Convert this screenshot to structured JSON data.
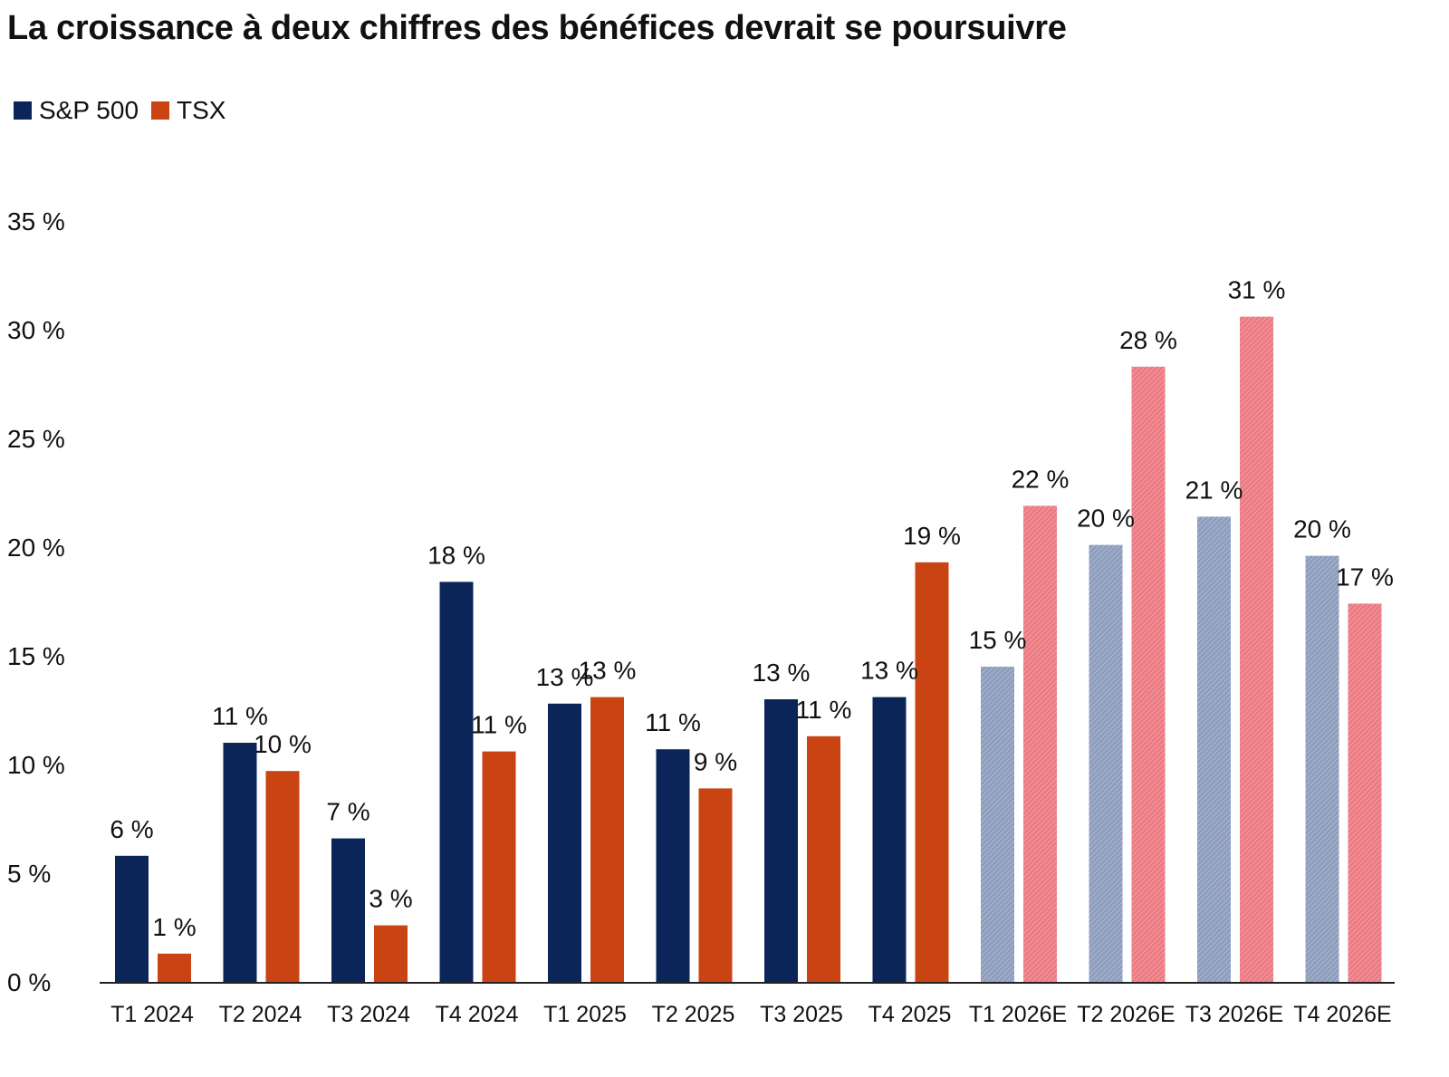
{
  "title": "La croissance à deux chiffres des bénéfices devrait se poursuivre",
  "colors": {
    "sp500": "#0b2559",
    "tsx": "#c94412",
    "sp500_estimate": "#8d9dbd",
    "tsx_estimate": "#ec7a82"
  },
  "chart_data": {
    "type": "bar",
    "title": "La croissance à deux chiffres des bénéfices devrait se poursuivre",
    "xlabel": "",
    "ylabel": "",
    "categories": [
      "T1 2024",
      "T2 2024",
      "T3 2024",
      "T4 2024",
      "T1 2025",
      "T2 2025",
      "T3 2025",
      "T4 2025",
      "T1 2026E",
      "T2 2026E",
      "T3 2026E",
      "T4 2026E"
    ],
    "estimate_categories": [
      "T1 2026E",
      "T2 2026E",
      "T3 2026E",
      "T4 2026E"
    ],
    "series": [
      {
        "name": "S&P 500",
        "values": [
          5.8,
          11.0,
          6.6,
          18.4,
          12.8,
          10.7,
          13.0,
          13.1,
          14.5,
          20.1,
          21.4,
          19.6
        ],
        "labels": [
          "6 %",
          "11 %",
          "7 %",
          "18 %",
          "13 %",
          "11 %",
          "13 %",
          "13 %",
          "15 %",
          "20 %",
          "21 %",
          "20 %"
        ]
      },
      {
        "name": "TSX",
        "values": [
          1.3,
          9.7,
          2.6,
          10.6,
          13.1,
          8.9,
          11.3,
          19.3,
          21.9,
          28.3,
          30.6,
          17.4
        ],
        "labels": [
          "1 %",
          "10 %",
          "3 %",
          "11 %",
          "13 %",
          "9 %",
          "11 %",
          "19 %",
          "22 %",
          "28 %",
          "31 %",
          "17 %"
        ]
      }
    ],
    "ylim": [
      0,
      35
    ],
    "yticks": [
      0,
      5,
      10,
      15,
      20,
      25,
      30,
      35
    ],
    "ytick_labels": [
      "0 %",
      "5 %",
      "10 %",
      "15 %",
      "20 %",
      "25 %",
      "30 %",
      "35 %"
    ],
    "grid": false,
    "legend": "top-left"
  }
}
